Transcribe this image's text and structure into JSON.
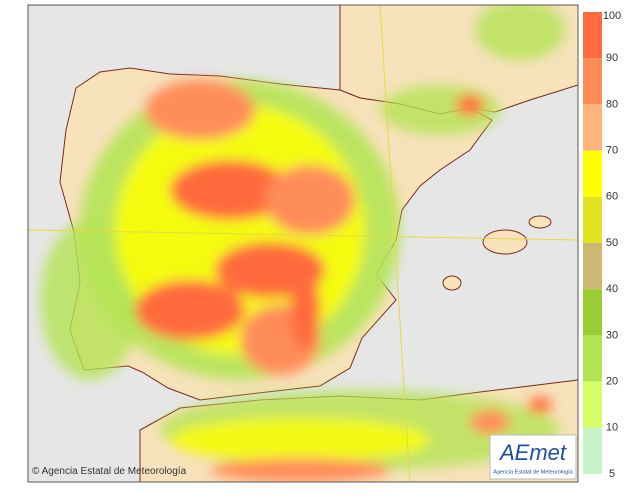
{
  "credit": "Agencia Estatal de Meteorología",
  "logo": {
    "name": "AEmet",
    "subtitle": "Agencia Estatal de Meteorología"
  },
  "legend": {
    "ticks": [
      100,
      90,
      80,
      70,
      60,
      50,
      40,
      30,
      20,
      10,
      5
    ],
    "colors": [
      "#ff6b3d",
      "#ff8d5a",
      "#ffb47e",
      "#ffff00",
      "#e3e324",
      "#cdb872",
      "#9ccc33",
      "#b4e454",
      "#d4ff66",
      "#c8f2c8"
    ]
  }
}
